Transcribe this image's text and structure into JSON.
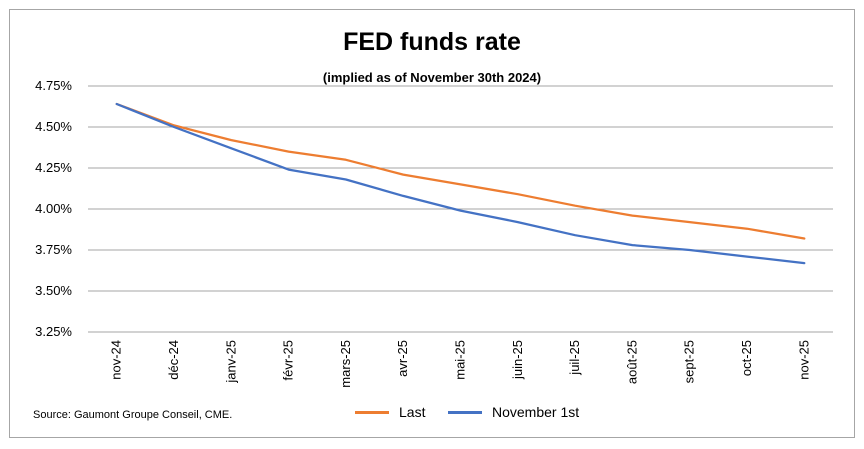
{
  "title": "FED funds rate",
  "subtitle": "(implied as of November 30th 2024)",
  "source": "Source: Gaumont Groupe Conseil, CME.",
  "chart_data": {
    "type": "line",
    "categories": [
      "nov-24",
      "déc-24",
      "janv-25",
      "févr-25",
      "mars-25",
      "avr-25",
      "mai-25",
      "juin-25",
      "juil-25",
      "août-25",
      "sept-25",
      "oct-25",
      "nov-25"
    ],
    "series": [
      {
        "name": "Last",
        "color": "#ed7d31",
        "values": [
          4.64,
          4.51,
          4.42,
          4.35,
          4.3,
          4.21,
          4.15,
          4.09,
          4.02,
          3.96,
          3.92,
          3.88,
          3.82
        ]
      },
      {
        "name": "November 1st",
        "color": "#4472c4",
        "values": [
          4.64,
          4.5,
          4.37,
          4.24,
          4.18,
          4.08,
          3.99,
          3.92,
          3.84,
          3.78,
          3.75,
          3.71,
          3.67
        ]
      }
    ],
    "y_ticks": [
      "3.25%",
      "3.50%",
      "3.75%",
      "4.00%",
      "4.25%",
      "4.50%",
      "4.75%"
    ],
    "ylim": [
      3.25,
      4.75
    ],
    "grid": true,
    "legend": "bottom"
  }
}
